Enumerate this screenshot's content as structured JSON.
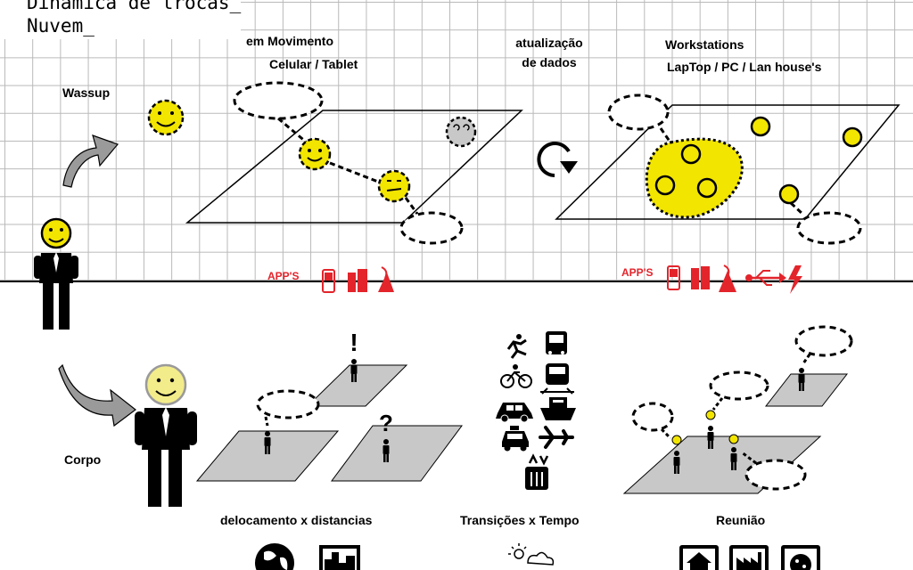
{
  "title": {
    "line1": "Dinâmica de trocas_",
    "line2": "Nuvem_"
  },
  "labels": {
    "wassup": "Wassup",
    "em_movimento": "em Movimento",
    "celular_tablet": "Celular / Tablet",
    "atualizacao": "atualização",
    "de_dados": "de dados",
    "workstations": "Workstations",
    "workstation_devices": "LapTop / PC / Lan house's",
    "corpo": "Corpo",
    "deslocamento": "delocamento x distancias",
    "transicoes": "Transições x Tempo",
    "reuniao": "Reunião"
  },
  "apps": {
    "left": "APP'S",
    "right": "APP'S"
  },
  "markers": {
    "exclamation": "!",
    "question": "?"
  },
  "icons": [
    "smiley-icon",
    "curved-arrow-icon",
    "refresh-icon",
    "mobile-phone-icon",
    "pc-tower-icon",
    "satellite-dish-icon",
    "usb-icon",
    "lightning-icon",
    "runner-icon",
    "bicycle-icon",
    "car-icon",
    "taxi-icon",
    "bus-icon",
    "train-icon",
    "ship-icon",
    "airplane-icon",
    "elevator-icon",
    "globe-icon",
    "city-icon",
    "sun-cloud-icon",
    "house-icon",
    "factory-icon",
    "pizza-icon",
    "speech-bubble-icon"
  ],
  "colors": {
    "face": "#f2e500",
    "accent": "#e3242b",
    "panel": "#c8c8c8",
    "ink": "#000000"
  }
}
